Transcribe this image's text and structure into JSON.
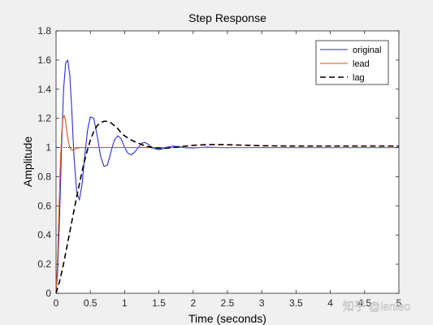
{
  "chart_data": {
    "type": "line",
    "title": "Step Response",
    "xlabel": "Time (seconds)",
    "ylabel": "Amplitude",
    "xlim": [
      0,
      5
    ],
    "ylim": [
      0,
      1.8
    ],
    "x_ticks": [
      0,
      0.5,
      1,
      1.5,
      2,
      2.5,
      3,
      3.5,
      4,
      4.5,
      5
    ],
    "x_tick_labels": [
      "0",
      "0.5",
      "1",
      "1.5",
      "2",
      "2.5",
      "3",
      "3.5",
      "4",
      "4.5",
      "5"
    ],
    "y_ticks": [
      0,
      0.2,
      0.4,
      0.6,
      0.8,
      1,
      1.2,
      1.4,
      1.6,
      1.8
    ],
    "y_tick_labels": [
      "0",
      "0.2",
      "0.4",
      "0.6",
      "0.8",
      "1",
      "1.2",
      "1.4",
      "1.6",
      "1.8"
    ],
    "grid": false,
    "legend_position": "top-right",
    "reference_line": {
      "y": 1,
      "style": "dotted",
      "color": "#000000"
    },
    "series": [
      {
        "name": "original",
        "color": "#2b2bd6",
        "style": "solid",
        "x": [
          0,
          0.02,
          0.05,
          0.08,
          0.11,
          0.14,
          0.17,
          0.2,
          0.23,
          0.26,
          0.3,
          0.34,
          0.38,
          0.42,
          0.46,
          0.5,
          0.55,
          0.6,
          0.65,
          0.7,
          0.75,
          0.8,
          0.85,
          0.9,
          0.95,
          1.0,
          1.05,
          1.1,
          1.15,
          1.2,
          1.25,
          1.3,
          1.35,
          1.4,
          1.45,
          1.5,
          1.55,
          1.6,
          1.7,
          1.8,
          1.9,
          2.0,
          2.1,
          2.2,
          2.4,
          2.6,
          3.0,
          4.0,
          5.0
        ],
        "y": [
          0,
          0.12,
          0.5,
          1.0,
          1.4,
          1.58,
          1.6,
          1.5,
          1.25,
          0.95,
          0.7,
          0.64,
          0.75,
          0.95,
          1.12,
          1.21,
          1.2,
          1.08,
          0.94,
          0.87,
          0.88,
          0.97,
          1.05,
          1.08,
          1.06,
          1.0,
          0.96,
          0.95,
          0.97,
          1.0,
          1.03,
          1.035,
          1.02,
          1.0,
          0.99,
          0.985,
          0.99,
          1.0,
          1.01,
          1.005,
          0.998,
          0.997,
          1.0,
          1.003,
          1.0,
          1.0,
          1.0,
          1.0,
          1.0
        ]
      },
      {
        "name": "lead",
        "color": "#d95319",
        "style": "solid",
        "x": [
          0,
          0.02,
          0.04,
          0.06,
          0.08,
          0.1,
          0.12,
          0.14,
          0.16,
          0.18,
          0.2,
          0.22,
          0.24,
          0.26,
          0.3,
          0.35,
          0.4,
          0.5,
          1.0,
          2.0,
          3.0,
          4.0,
          5.0
        ],
        "y": [
          0,
          0.2,
          0.52,
          0.85,
          1.08,
          1.2,
          1.22,
          1.18,
          1.1,
          1.04,
          1.0,
          0.985,
          0.98,
          0.985,
          0.995,
          1.0,
          1.0,
          1.0,
          1.0,
          1.0,
          1.0,
          1.0,
          1.0
        ]
      },
      {
        "name": "lag",
        "color": "#000000",
        "style": "dashed",
        "x": [
          0,
          0.05,
          0.1,
          0.15,
          0.2,
          0.25,
          0.3,
          0.35,
          0.4,
          0.45,
          0.5,
          0.55,
          0.6,
          0.65,
          0.7,
          0.75,
          0.8,
          0.85,
          0.9,
          0.95,
          1.0,
          1.1,
          1.2,
          1.3,
          1.4,
          1.5,
          1.6,
          1.7,
          1.8,
          1.9,
          2.0,
          2.2,
          2.4,
          2.6,
          2.8,
          3.0,
          3.5,
          4.0,
          4.5,
          5.0
        ],
        "y": [
          0,
          0.08,
          0.18,
          0.3,
          0.42,
          0.54,
          0.66,
          0.77,
          0.88,
          0.97,
          1.05,
          1.11,
          1.15,
          1.17,
          1.18,
          1.18,
          1.17,
          1.15,
          1.13,
          1.1,
          1.08,
          1.05,
          1.03,
          1.01,
          1.0,
          0.995,
          0.995,
          1.0,
          1.005,
          1.01,
          1.015,
          1.02,
          1.02,
          1.018,
          1.015,
          1.012,
          1.01,
          1.01,
          1.01,
          1.01
        ]
      }
    ]
  },
  "watermark": {
    "text": "知乎 @lenleo"
  }
}
